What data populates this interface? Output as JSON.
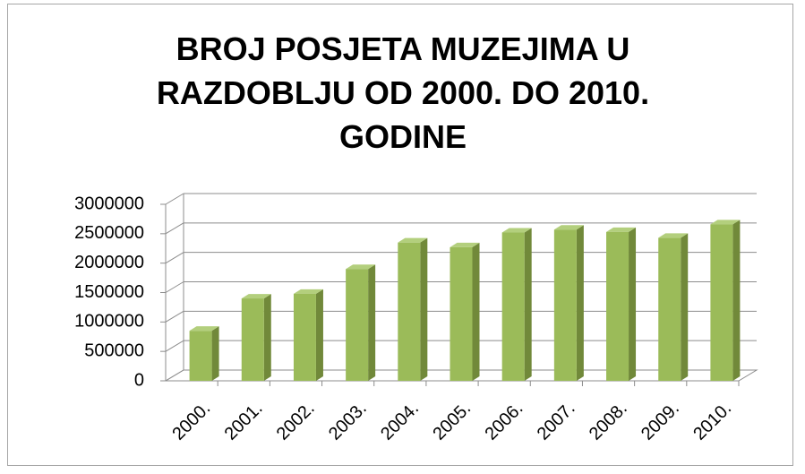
{
  "chart_data": {
    "type": "bar3d",
    "title": "BROJ POSJETA MUZEJIMA U RAZDOBLJU OD 2000. DO 2010. GODINE",
    "categories": [
      "2000.",
      "2001.",
      "2002.",
      "2003.",
      "2004.",
      "2005.",
      "2006.",
      "2007.",
      "2008.",
      "2009.",
      "2010."
    ],
    "values": [
      850000,
      1400000,
      1480000,
      1900000,
      2350000,
      2270000,
      2520000,
      2570000,
      2530000,
      2430000,
      2660000
    ],
    "color": "#9bbb59",
    "ylim": [
      0,
      3000000
    ],
    "yticks": [
      0,
      500000,
      1000000,
      1500000,
      2000000,
      2500000,
      3000000
    ],
    "grid": true
  }
}
